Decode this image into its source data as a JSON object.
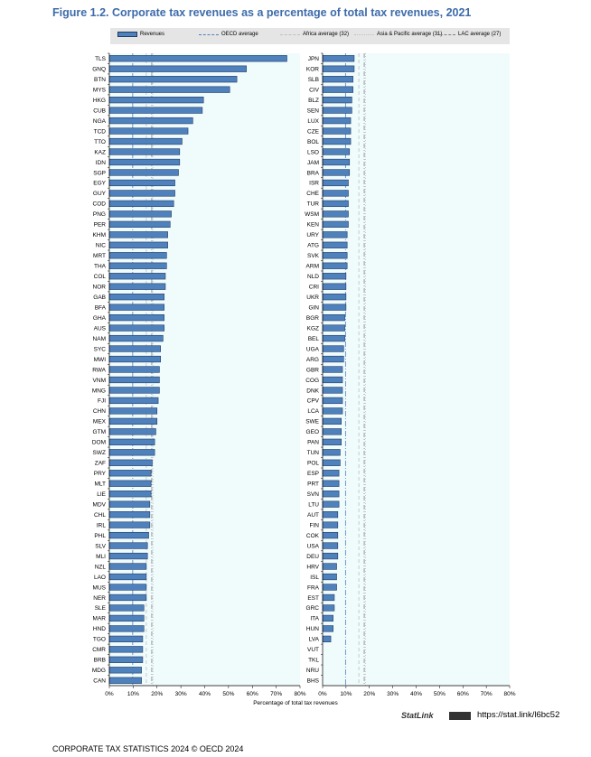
{
  "title": "Figure 1.2. Corporate tax revenues as a percentage of total tax revenues, 2021",
  "legend": {
    "revenues": "Revenues",
    "oecd": "OECD average",
    "africa": "Africa average (32)",
    "asia": "Asia & Pacific average (31)",
    "lac": "LAC average (27)"
  },
  "colors": {
    "bar": "#4f81bd",
    "bar_border": "#1f3b64",
    "plot_bg": "#f0fbfc",
    "title": "#3d6bab",
    "oecd_line": "#4f81bd",
    "africa_line": "#bfbfbf",
    "asia_line": "#bfbfbf",
    "lac_line": "#808080"
  },
  "chart_data": {
    "type": "bar",
    "orientation": "horizontal",
    "xlabel": "Percentage of total tax revenues",
    "xlim": [
      0,
      80
    ],
    "xticks": [
      "0%",
      "10%",
      "20%",
      "30%",
      "40%",
      "50%",
      "60%",
      "70%",
      "80%"
    ],
    "reference_lines": {
      "oecd_average": 9.8,
      "africa_average": 15.5,
      "asia_pacific_average": 18.3,
      "lac_average": 17.8
    },
    "panels": [
      {
        "categories": [
          "TLS",
          "GNQ",
          "BTN",
          "MYS",
          "HKG",
          "CUB",
          "NGA",
          "TCD",
          "TTO",
          "KAZ",
          "IDN",
          "SGP",
          "EGY",
          "GUY",
          "COD",
          "PNG",
          "PER",
          "KHM",
          "NIC",
          "MRT",
          "THA",
          "COL",
          "NOR",
          "GAB",
          "BFA",
          "GHA",
          "AUS",
          "NAM",
          "SYC",
          "MWI",
          "RWA",
          "VNM",
          "MNG",
          "FJI",
          "CHN",
          "MEX",
          "GTM",
          "DOM",
          "SWZ",
          "ZAF",
          "PRY",
          "MLT",
          "LIE",
          "MDV",
          "CHL",
          "IRL",
          "PHL",
          "SLV",
          "MLI",
          "NZL",
          "LAO",
          "MUS",
          "NER",
          "SLE",
          "MAR",
          "HND",
          "TGO",
          "CMR",
          "BRB",
          "MDG",
          "CAN"
        ],
        "values": [
          74.5,
          57.5,
          53.5,
          50.5,
          39.5,
          39,
          35,
          33,
          30.5,
          29.5,
          29.5,
          29,
          27.5,
          27.5,
          27,
          26,
          25.5,
          24.5,
          24.5,
          24,
          24,
          23.5,
          23.5,
          23,
          23,
          23,
          23,
          22.5,
          21.5,
          21.5,
          21,
          21,
          21,
          20.5,
          20,
          20,
          19.5,
          19,
          19,
          18,
          17.5,
          17.5,
          17.5,
          17,
          17,
          17,
          16.5,
          16,
          16,
          15.5,
          15.5,
          15.5,
          15.5,
          14.5,
          14.5,
          14.5,
          14,
          14,
          14,
          13.5,
          13.5
        ]
      },
      {
        "categories": [
          "JPN",
          "KOR",
          "SLB",
          "CIV",
          "BLZ",
          "SEN",
          "LUX",
          "CZE",
          "BOL",
          "LSO",
          "JAM",
          "BRA",
          "ISR",
          "CHE",
          "TUR",
          "WSM",
          "KEN",
          "URY",
          "ATG",
          "SVK",
          "ARM",
          "NLD",
          "CRI",
          "UKR",
          "GIN",
          "BGR",
          "KGZ",
          "BEL",
          "UGA",
          "ARG",
          "GBR",
          "COG",
          "DNK",
          "CPV",
          "LCA",
          "SWE",
          "GEO",
          "PAN",
          "TUN",
          "POL",
          "ESP",
          "PRT",
          "SVN",
          "LTU",
          "AUT",
          "FIN",
          "COK",
          "USA",
          "DEU",
          "HRV",
          "ISL",
          "FRA",
          "EST",
          "GRC",
          "ITA",
          "HUN",
          "LVA",
          "VUT",
          "TKL",
          "NRU",
          "BHS"
        ],
        "values": [
          13.5,
          13.5,
          13,
          13,
          12.5,
          12.5,
          12,
          12,
          12,
          11.5,
          11.5,
          11.5,
          11,
          11,
          11,
          11,
          11,
          10.5,
          10.5,
          10.5,
          10.5,
          10,
          10,
          10,
          10,
          9.5,
          9.5,
          9.5,
          9,
          9,
          8.5,
          8.5,
          8.5,
          8.5,
          8.5,
          8,
          8,
          8,
          7.5,
          7.5,
          7,
          7,
          7,
          7,
          6.5,
          6.5,
          6.5,
          6.5,
          6.5,
          6,
          6,
          6,
          5,
          5,
          4.5,
          4.5,
          3.5,
          0,
          0,
          0,
          0
        ]
      }
    ]
  },
  "source": {
    "statlink_label": "StatLink",
    "url": "https://stat.link/l6bc52"
  },
  "footer": "CORPORATE TAX STATISTICS 2024 © OECD 2024"
}
